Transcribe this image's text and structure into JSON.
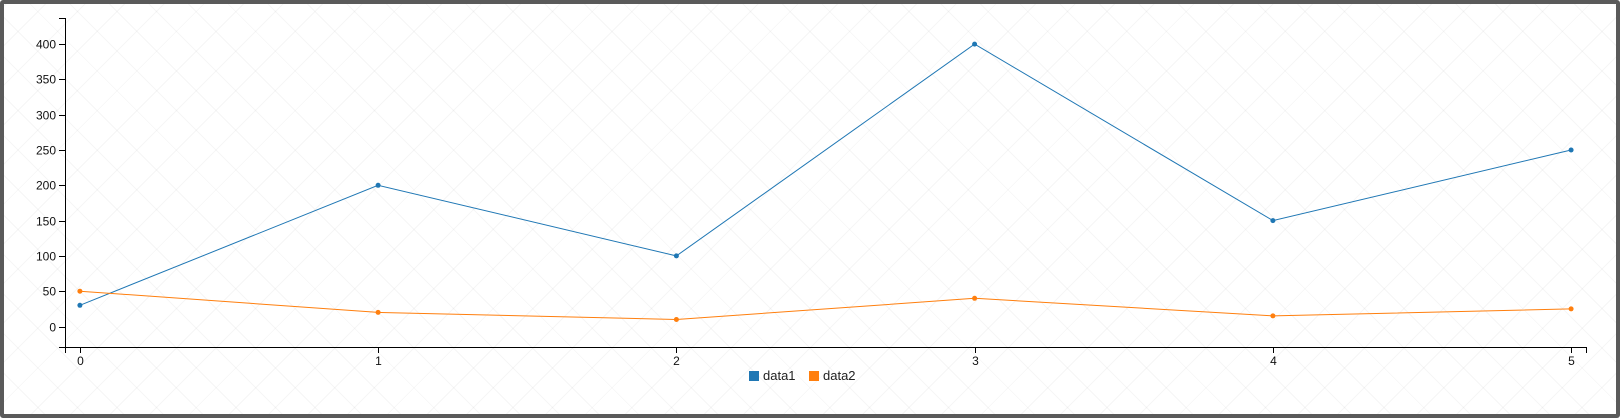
{
  "chart_data": {
    "type": "line",
    "x": [
      0,
      1,
      2,
      3,
      4,
      5
    ],
    "series": [
      {
        "name": "data1",
        "color": "#1f77b4",
        "values": [
          30,
          200,
          100,
          400,
          150,
          250
        ]
      },
      {
        "name": "data2",
        "color": "#ff7f0e",
        "values": [
          50,
          20,
          10,
          40,
          15,
          25
        ]
      }
    ],
    "x_ticks": [
      "0",
      "1",
      "2",
      "3",
      "4",
      "5"
    ],
    "y_ticks": [
      "0",
      "50",
      "100",
      "150",
      "200",
      "250",
      "300",
      "350",
      "400"
    ],
    "ylim": [
      -29,
      437
    ],
    "xlim": [
      -0.05,
      5.05
    ],
    "grid": false,
    "legend_position": "bottom-center"
  }
}
